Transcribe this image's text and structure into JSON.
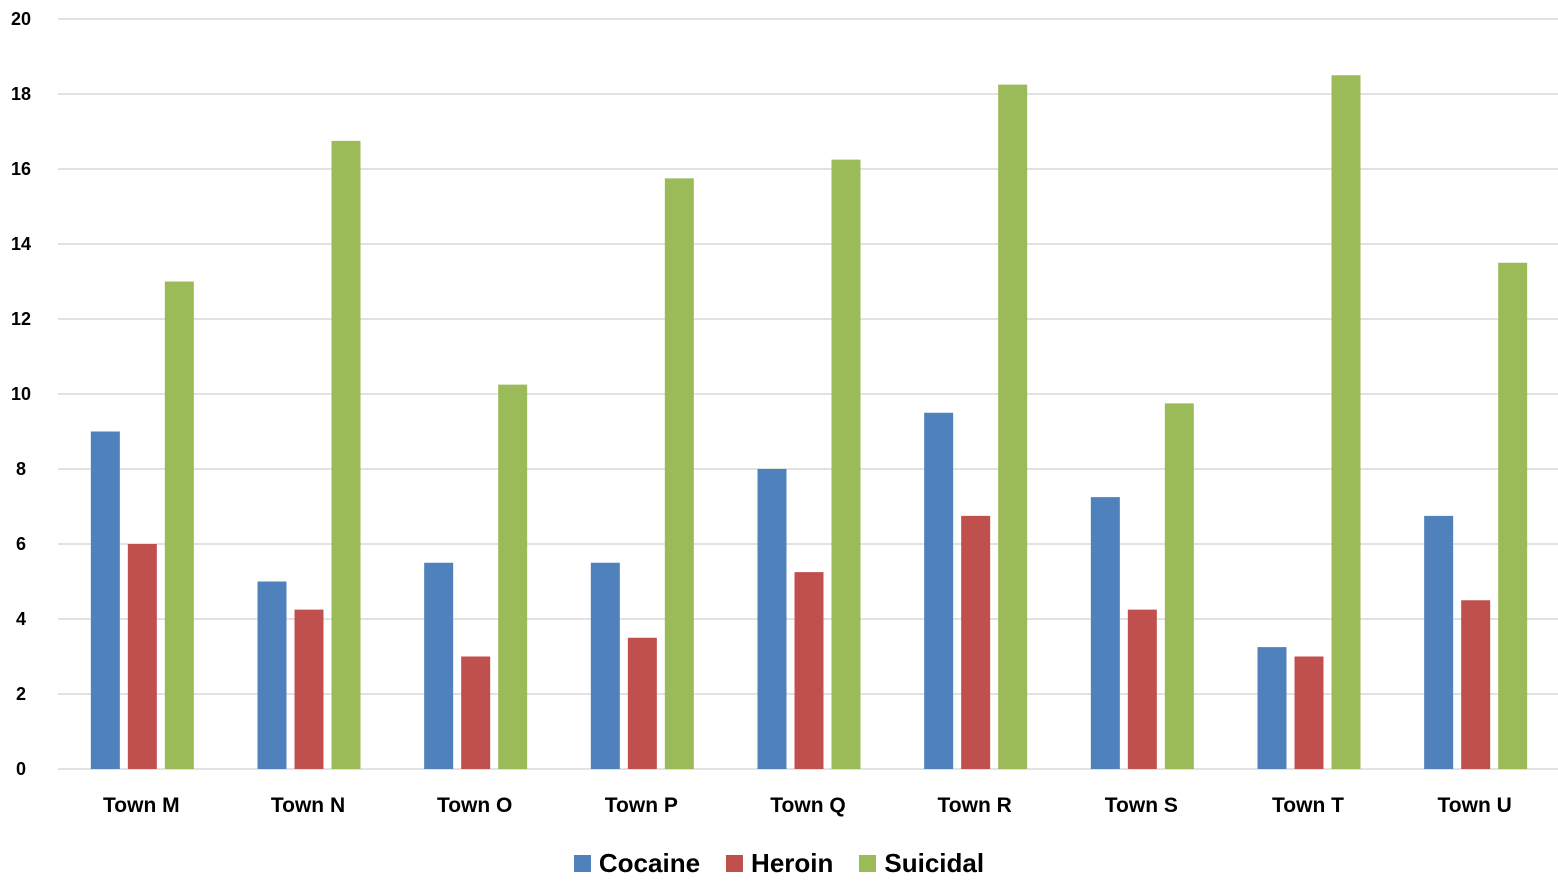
{
  "chart_data": {
    "type": "bar",
    "categories": [
      "Town M",
      "Town N",
      "Town O",
      "Town P",
      "Town Q",
      "Town R",
      "Town S",
      "Town T",
      "Town U"
    ],
    "series": [
      {
        "name": "Cocaine",
        "color": "#4F81BD",
        "values": [
          9,
          5,
          5.5,
          5.5,
          8,
          9.5,
          7.25,
          3.25,
          6.75
        ]
      },
      {
        "name": "Heroin",
        "color": "#C0504D",
        "values": [
          6,
          4.25,
          3,
          3.5,
          5.25,
          6.75,
          4.25,
          3,
          4.5
        ]
      },
      {
        "name": "Suicidal",
        "color": "#9BBB59",
        "values": [
          13,
          16.75,
          10.25,
          15.75,
          16.25,
          18.25,
          9.75,
          18.5,
          13.5
        ]
      }
    ],
    "yticks": [
      "0",
      "2",
      "4",
      "6",
      "8",
      "10",
      "12",
      "14",
      "16",
      "18",
      "20"
    ],
    "ylim": [
      0,
      20
    ],
    "grid": true,
    "legend_position": "bottom-center",
    "title": "",
    "xlabel": "",
    "ylabel": ""
  }
}
